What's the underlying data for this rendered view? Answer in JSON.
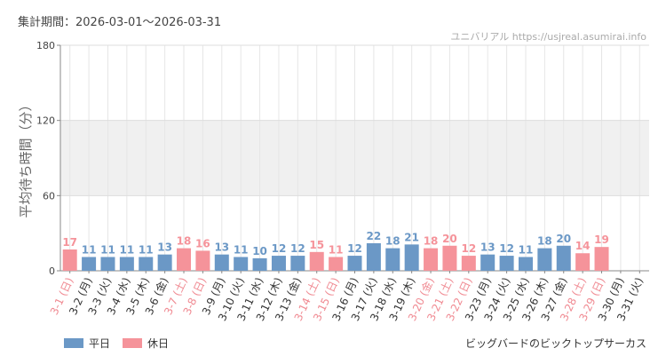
{
  "header": {
    "period": "集計期間：2026-03-01～2026-03-31",
    "source": "ユニバリアル  https://usjreal.asumirai.info"
  },
  "footer": {
    "attraction": "ビッグバードのビックトップサーカス",
    "legend_weekday": "平日",
    "legend_holiday": "休日"
  },
  "colors": {
    "weekday": "#6b98c6",
    "holiday": "#f5939a",
    "band": "#f0f0f0"
  },
  "chart_data": {
    "type": "bar",
    "ylabel": "平均待ち時間（分）",
    "ylim": [
      0,
      180
    ],
    "yticks": [
      0,
      60,
      120,
      180
    ],
    "shaded_band": [
      60,
      120
    ],
    "grid": true,
    "categories": [
      "3-1 (日)",
      "3-2 (月)",
      "3-3 (火)",
      "3-4 (水)",
      "3-5 (木)",
      "3-6 (金)",
      "3-7 (土)",
      "3-8 (日)",
      "3-9 (月)",
      "3-10 (火)",
      "3-11 (水)",
      "3-12 (木)",
      "3-13 (金)",
      "3-14 (土)",
      "3-15 (日)",
      "3-16 (月)",
      "3-17 (火)",
      "3-18 (水)",
      "3-19 (木)",
      "3-20 (金)",
      "3-21 (土)",
      "3-22 (日)",
      "3-23 (月)",
      "3-24 (火)",
      "3-25 (水)",
      "3-26 (木)",
      "3-27 (金)",
      "3-28 (土)",
      "3-29 (日)",
      "3-30 (月)",
      "3-31 (火)"
    ],
    "values": [
      17,
      11,
      11,
      11,
      11,
      13,
      18,
      16,
      13,
      11,
      10,
      12,
      12,
      15,
      11,
      12,
      22,
      18,
      21,
      18,
      20,
      12,
      13,
      12,
      11,
      18,
      20,
      14,
      19,
      null,
      null
    ],
    "day_type": [
      "holiday",
      "weekday",
      "weekday",
      "weekday",
      "weekday",
      "weekday",
      "holiday",
      "holiday",
      "weekday",
      "weekday",
      "weekday",
      "weekday",
      "weekday",
      "holiday",
      "holiday",
      "weekday",
      "weekday",
      "weekday",
      "weekday",
      "holiday",
      "holiday",
      "holiday",
      "weekday",
      "weekday",
      "weekday",
      "weekday",
      "weekday",
      "holiday",
      "holiday",
      "weekday",
      "weekday"
    ],
    "legend": [
      "平日",
      "休日"
    ],
    "legend_position": "bottom-left"
  }
}
